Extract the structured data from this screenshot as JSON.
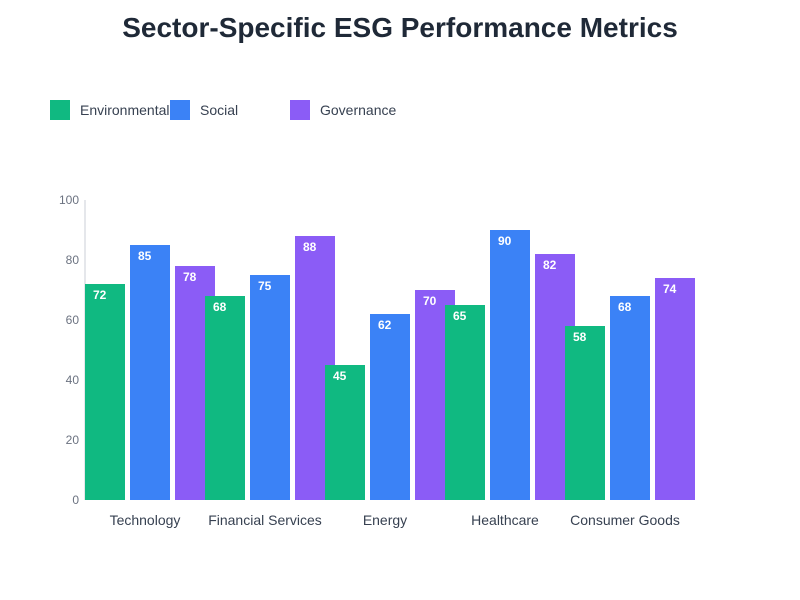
{
  "chart_data": {
    "type": "bar",
    "title": "Sector-Specific ESG Performance Metrics",
    "categories": [
      "Technology",
      "Financial Services",
      "Energy",
      "Healthcare",
      "Consumer Goods"
    ],
    "series": [
      {
        "name": "Environmental",
        "color": "#10b981",
        "values": [
          72,
          68,
          45,
          65,
          58
        ]
      },
      {
        "name": "Social",
        "color": "#3b82f6",
        "values": [
          85,
          75,
          62,
          90,
          68
        ]
      },
      {
        "name": "Governance",
        "color": "#8b5cf6",
        "values": [
          78,
          88,
          70,
          82,
          74
        ]
      }
    ],
    "ylim": [
      0,
      100
    ],
    "yticks": [
      0,
      20,
      40,
      60,
      80,
      100
    ],
    "legend": "top-left",
    "grid": false
  }
}
